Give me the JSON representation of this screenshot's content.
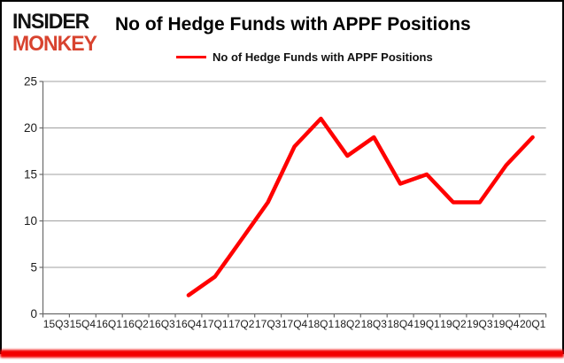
{
  "brand": {
    "line1": "INSIDER",
    "line2": "MONKEY",
    "logo_red": "#d8432f"
  },
  "header": {
    "title": "No of Hedge Funds with APPF Positions"
  },
  "legend": {
    "label": "No of Hedge Funds with APPF Positions",
    "line_color": "#ff0000"
  },
  "chart_data": {
    "type": "line",
    "title": "No of Hedge Funds with APPF Positions",
    "categories": [
      "15Q3",
      "15Q4",
      "16Q1",
      "16Q2",
      "16Q3",
      "16Q4",
      "17Q1",
      "17Q2",
      "17Q3",
      "17Q4",
      "18Q1",
      "18Q2",
      "18Q3",
      "18Q4",
      "19Q1",
      "19Q2",
      "19Q3",
      "19Q4",
      "20Q1"
    ],
    "series": [
      {
        "name": "No of Hedge Funds with APPF Positions",
        "color": "#ff0000",
        "values": [
          null,
          null,
          null,
          null,
          null,
          2,
          4,
          8,
          12,
          18,
          21,
          17,
          19,
          14,
          15,
          12,
          12,
          16,
          19
        ]
      }
    ],
    "xlabel": "",
    "ylabel": "",
    "ylim": [
      0,
      25
    ],
    "yticks": [
      0,
      5,
      10,
      15,
      20,
      25
    ],
    "grid": true,
    "legend_position": "top"
  },
  "colors": {
    "line_red": "#ff0000",
    "gridline": "#a0a0a0",
    "axis": "#6b6b6b",
    "tick_text": "#1c1c1c",
    "border": "#000000",
    "bottom_shadow": "#f30000"
  }
}
